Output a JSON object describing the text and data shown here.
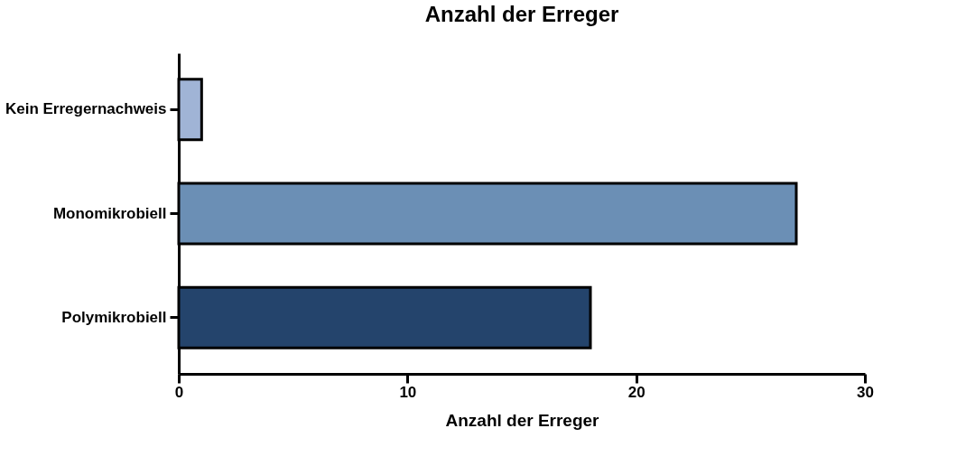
{
  "chart_data": {
    "type": "bar",
    "orientation": "horizontal",
    "title": "Anzahl der Erreger",
    "xlabel": "Anzahl der Erreger",
    "categories": [
      "Kein Erregernachweis",
      "Monomikrobiell",
      "Polymikrobiell"
    ],
    "values": [
      1,
      27,
      18
    ],
    "colors": [
      "#a0b4d6",
      "#6b8fb5",
      "#24446c"
    ],
    "xlim": [
      0,
      30
    ],
    "xticks": [
      0,
      10,
      20,
      30
    ],
    "grid": false,
    "legend": false
  }
}
